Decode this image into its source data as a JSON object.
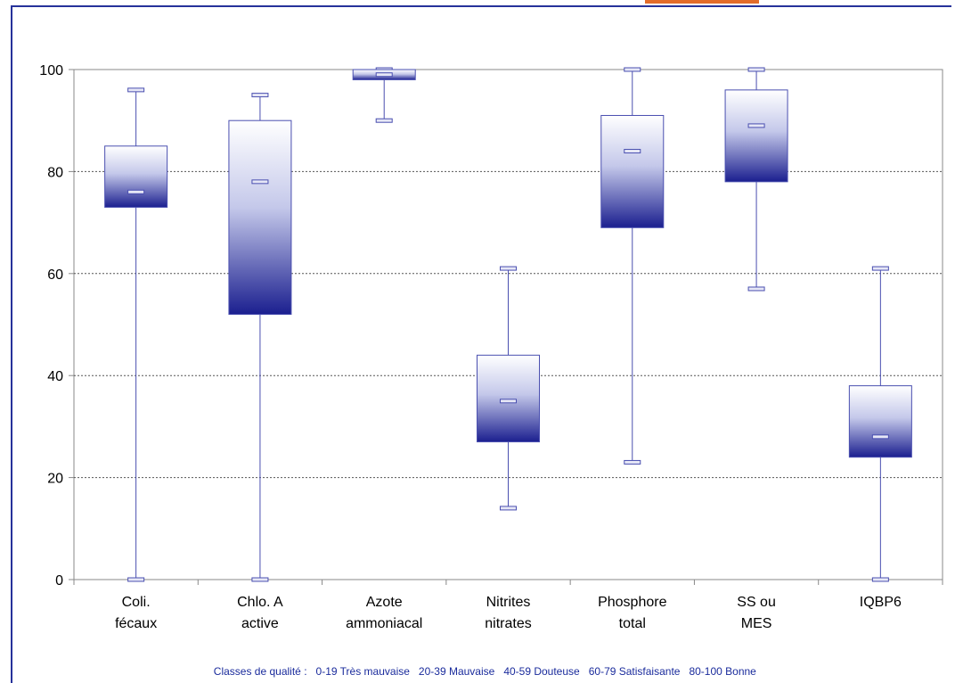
{
  "chart_data": {
    "type": "boxplot",
    "title": "",
    "xlabel": "",
    "ylabel": "",
    "ylim": [
      0,
      100
    ],
    "yticks": [
      0,
      20,
      40,
      60,
      80,
      100
    ],
    "grid": true,
    "categories": [
      [
        "Coli.",
        "fécaux"
      ],
      [
        "Chlo. A",
        "active"
      ],
      [
        "Azote",
        "ammoniacal"
      ],
      [
        "Nitrites",
        "nitrates"
      ],
      [
        "Phosphore",
        "total"
      ],
      [
        "SS ou",
        "MES"
      ],
      [
        "IQBP6"
      ]
    ],
    "boxes": [
      {
        "min": 0,
        "q1": 73,
        "median": 76,
        "q3": 85,
        "max": 96
      },
      {
        "min": 0,
        "q1": 52,
        "median": 78,
        "q3": 90,
        "max": 95
      },
      {
        "min": 90,
        "q1": 98,
        "median": 99,
        "q3": 100,
        "max": 100
      },
      {
        "min": 14,
        "q1": 27,
        "median": 35,
        "q3": 44,
        "max": 61
      },
      {
        "min": 23,
        "q1": 69,
        "median": 84,
        "q3": 91,
        "max": 100
      },
      {
        "min": 57,
        "q1": 78,
        "median": 89,
        "q3": 96,
        "max": 100
      },
      {
        "min": 0,
        "q1": 24,
        "median": 28,
        "q3": 38,
        "max": 61
      }
    ],
    "colors": {
      "box_top": "#ffffff",
      "box_bottom": "#1b1f8f",
      "line": "#4a4fb0",
      "grid": "#555555"
    }
  },
  "legend": {
    "prefix": "Classes de qualité :",
    "classes": [
      "0-19 Très mauvaise",
      "20-39 Mauvaise",
      "40-59 Douteuse",
      "60-79 Satisfaisante",
      "80-100 Bonne"
    ]
  }
}
